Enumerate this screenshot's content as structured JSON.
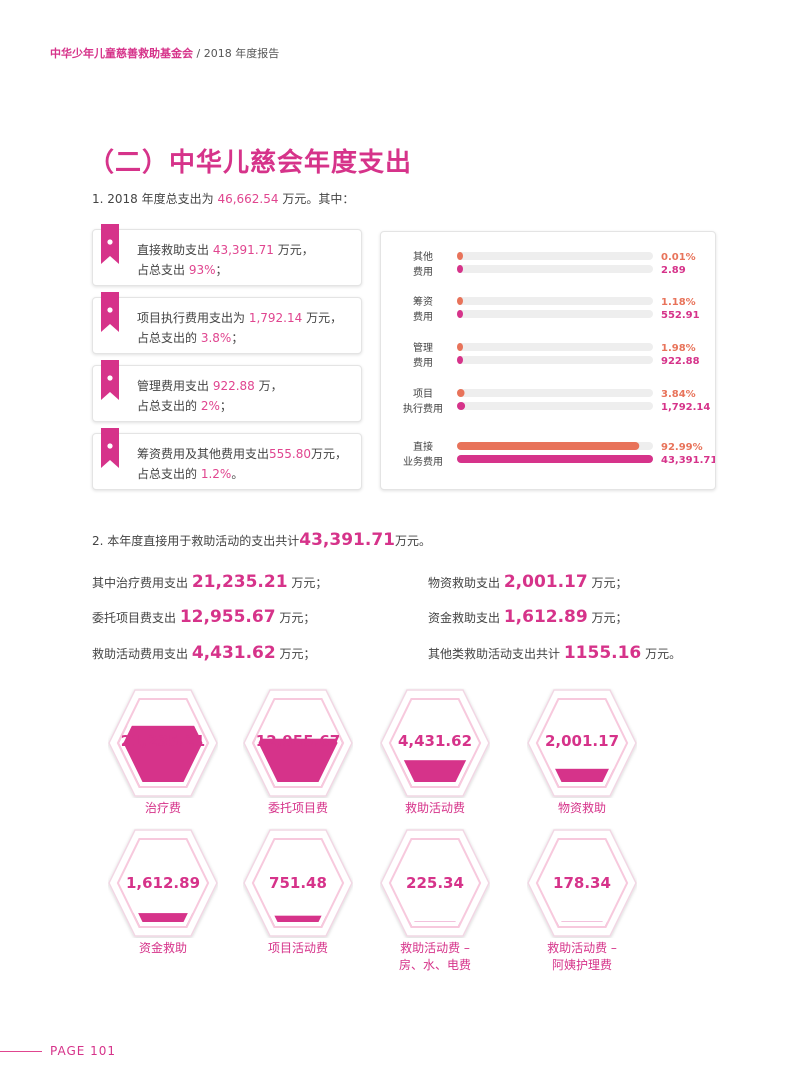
{
  "header": {
    "org": "中华少年儿童慈善救助基金会",
    "rest": " / 2018 年度报告"
  },
  "title": "（二）中华儿慈会年度支出",
  "total": {
    "prefix": "1. 2018 年度总支出为 ",
    "value": "46,662.54",
    "suffix": " 万元。其中："
  },
  "cards": [
    {
      "l1_pre": "直接救助支出 ",
      "l1_val": "43,391.71",
      "l1_suf": " 万元，",
      "l2_pre": "占总支出 ",
      "l2_val": "93%",
      "l2_suf": "；"
    },
    {
      "l1_pre": "项目执行费用支出为 ",
      "l1_val": "1,792.14",
      "l1_suf": " 万元，",
      "l2_pre": "占总支出的 ",
      "l2_val": "3.8%",
      "l2_suf": "；"
    },
    {
      "l1_pre": "管理费用支出 ",
      "l1_val": "922.88",
      "l1_suf": " 万，",
      "l2_pre": "占总支出的 ",
      "l2_val": "2%",
      "l2_suf": "；"
    },
    {
      "l1_pre": "筹资费用及其他费用支出",
      "l1_val": "555.80",
      "l1_suf": "万元，",
      "l2_pre": "占总支出的 ",
      "l2_val": "1.2%",
      "l2_suf": "。"
    }
  ],
  "chart_data": {
    "type": "bar",
    "categories": [
      [
        "其他",
        "费用"
      ],
      [
        "筹资",
        "费用"
      ],
      [
        "管理",
        "费用"
      ],
      [
        "项目",
        "执行费用"
      ],
      [
        "直接",
        "业务费用"
      ]
    ],
    "series": [
      {
        "values": [
          0.01,
          1.18,
          1.98,
          3.84,
          92.99
        ],
        "labels": [
          "0.01%",
          "1.18%",
          "1.98%",
          "3.84%",
          "92.99%"
        ],
        "color": "#e8735a"
      },
      {
        "values": [
          2.89,
          552.91,
          922.88,
          1792.14,
          43391.71
        ],
        "labels": [
          "2.89",
          "552.91",
          "922.88",
          "1,792.14",
          "43,391.71"
        ],
        "color": "#d6338a"
      }
    ],
    "xlim_pct": [
      0,
      100
    ],
    "xlim_amount": [
      0,
      43391.71
    ]
  },
  "direct": {
    "prefix": "2. 本年度直接用于救助活动的支出共计",
    "value": "43,391.71",
    "suffix": "万元。"
  },
  "items": [
    {
      "pre": "其中治疗费用支出 ",
      "val": "21,235.21",
      "suf": " 万元；"
    },
    {
      "pre": "委托项目费支出 ",
      "val": "12,955.67",
      "suf": " 万元；"
    },
    {
      "pre": "救助活动费用支出 ",
      "val": "4,431.62",
      "suf": " 万元；"
    },
    {
      "pre": "物资救助支出 ",
      "val": "2,001.17",
      "suf": " 万元；"
    },
    {
      "pre": "资金救助支出 ",
      "val": "1,612.89",
      "suf": " 万元；"
    },
    {
      "pre": "其他类救助活动支出共计 ",
      "val": "1155.16",
      "suf": " 万元。"
    }
  ],
  "hexes": [
    {
      "value": "21,235.21",
      "amount": 21235.21,
      "label": [
        "治疗费"
      ]
    },
    {
      "value": "12,955.67",
      "amount": 12955.67,
      "label": [
        "委托项目费"
      ]
    },
    {
      "value": "4,431.62",
      "amount": 4431.62,
      "label": [
        "救助活动费"
      ]
    },
    {
      "value": "2,001.17",
      "amount": 2001.17,
      "label": [
        "物资救助"
      ]
    },
    {
      "value": "1,612.89",
      "amount": 1612.89,
      "label": [
        "资金救助"
      ]
    },
    {
      "value": "751.48",
      "amount": 751.48,
      "label": [
        "项目活动费"
      ]
    },
    {
      "value": "225.34",
      "amount": 225.34,
      "label": [
        "救助活动费 –",
        "房、水、电费"
      ]
    },
    {
      "value": "178.34",
      "amount": 178.34,
      "label": [
        "救助活动费 –",
        "阿姨护理费"
      ]
    }
  ],
  "hex_fill_fraction": [
    0.7,
    0.55,
    0.3,
    0.2,
    0.15,
    0.12,
    0.05,
    0.05
  ],
  "footer": {
    "page": "PAGE  101"
  },
  "colors": {
    "accent": "#d6338a",
    "orange": "#e8735a",
    "light_pink": "#f7c9dd",
    "track": "#eeeeee"
  }
}
